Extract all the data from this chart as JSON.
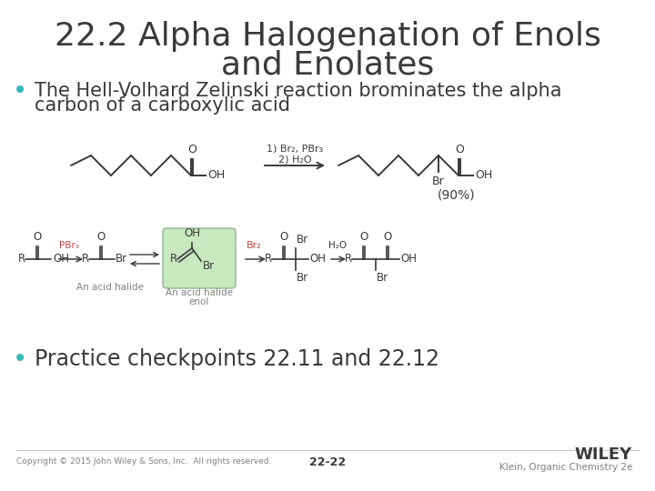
{
  "title_line1": "22.2 Alpha Halogenation of Enols",
  "title_line2": "and Enolates",
  "title_fontsize": 26,
  "title_color": "#3a3a3a",
  "bullet_color": "#3ab8b8",
  "bullet1_line1": "The Hell-Volhard Zelinski reaction brominates the alpha",
  "bullet1_line2": "carbon of a carboxylic acid",
  "bullet1_fontsize": 15,
  "bullet2_text": "Practice checkpoints 22.11 and 22.12",
  "bullet2_fontsize": 17,
  "footer_left": "Copyright © 2015 John Wiley & Sons, Inc.  All rights reserved.",
  "footer_center": "22-22",
  "footer_right_line1": "WILEY",
  "footer_right_line2": "Klein, Organic Chemistry 2e",
  "background_color": "#ffffff",
  "text_color": "#3a3a3a",
  "gray_text": "#808080"
}
